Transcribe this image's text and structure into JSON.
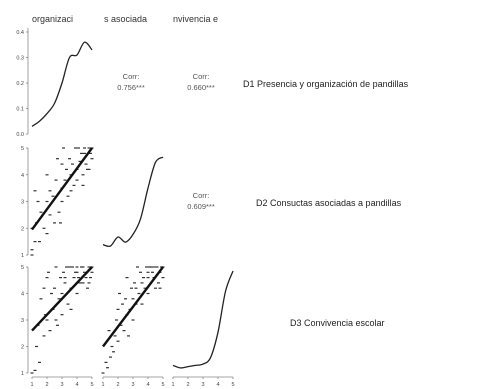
{
  "header_labels": [
    "organizaci",
    "s asociada",
    "nvivencia e"
  ],
  "row_labels": [
    "D1 Presencia y organización de pandillas",
    "D2 Consuctas asociadas a pandillas",
    "D3 Convivencia escolar"
  ],
  "correlations": [
    {
      "pair": "D1-D2",
      "label": "Corr:",
      "value": "0.756***"
    },
    {
      "pair": "D1-D3",
      "label": "Corr:",
      "value": "0.660***"
    },
    {
      "pair": "D2-D3",
      "label": "Corr:",
      "value": "0.609***"
    }
  ],
  "chart_data": {
    "type": "scatter",
    "variables": [
      "D1",
      "D2",
      "D3"
    ],
    "density_ticks": [
      "0.4",
      "0.3",
      "0.2",
      "0.1",
      "0.0"
    ],
    "scale_ticks": [
      "5",
      "4",
      "3",
      "2",
      "1"
    ],
    "bottom_ticks": [
      "1",
      "2",
      "3",
      "4",
      "5"
    ],
    "density_D1": {
      "x": [
        1.0,
        1.5,
        2.0,
        2.5,
        3.0,
        3.5,
        4.0,
        4.5,
        5.0
      ],
      "y": [
        0.03,
        0.05,
        0.08,
        0.12,
        0.2,
        0.3,
        0.31,
        0.36,
        0.33
      ]
    },
    "density_D2": {
      "x": [
        1.0,
        1.5,
        2.0,
        2.5,
        3.0,
        3.5,
        4.0,
        4.5,
        5.0
      ],
      "y": [
        0.04,
        0.035,
        0.07,
        0.05,
        0.08,
        0.14,
        0.26,
        0.36,
        0.38
      ]
    },
    "density_D3": {
      "x": [
        1.0,
        1.5,
        2.0,
        2.5,
        3.0,
        3.5,
        4.0,
        4.5,
        5.0
      ],
      "y": [
        0.03,
        0.02,
        0.025,
        0.03,
        0.035,
        0.06,
        0.16,
        0.32,
        0.4
      ]
    },
    "scatter_D2_vs_D1": {
      "fit": {
        "x": [
          1,
          5
        ],
        "y": [
          1.95,
          5.0
        ]
      },
      "points": [
        [
          1,
          1
        ],
        [
          1,
          1.2
        ],
        [
          1.2,
          1.5
        ],
        [
          1.5,
          1.5
        ],
        [
          1,
          2
        ],
        [
          1.3,
          2.2
        ],
        [
          1.8,
          2
        ],
        [
          2,
          1.8
        ],
        [
          2.2,
          2.5
        ],
        [
          2.5,
          2.2
        ],
        [
          2,
          3
        ],
        [
          2.4,
          3.2
        ],
        [
          2.8,
          2.6
        ],
        [
          3,
          3
        ],
        [
          3,
          3.5
        ],
        [
          3.2,
          3.8
        ],
        [
          3.4,
          3.2
        ],
        [
          3.6,
          4
        ],
        [
          3.8,
          3.6
        ],
        [
          4,
          4.2
        ],
        [
          4,
          3.8
        ],
        [
          4.2,
          4.5
        ],
        [
          4.4,
          4
        ],
        [
          4.5,
          4.8
        ],
        [
          4.6,
          4.4
        ],
        [
          4.8,
          5
        ],
        [
          5,
          5
        ],
        [
          5,
          4.6
        ],
        [
          4.7,
          4.2
        ],
        [
          4.3,
          4.8
        ],
        [
          3.5,
          4.6
        ],
        [
          3,
          4.4
        ],
        [
          2.6,
          3.8
        ],
        [
          2.2,
          3.4
        ],
        [
          1.6,
          2.6
        ],
        [
          1.4,
          3
        ],
        [
          3.9,
          5
        ],
        [
          3.3,
          4.2
        ],
        [
          4.9,
          4.8
        ],
        [
          4.1,
          5
        ],
        [
          2.9,
          2.2
        ],
        [
          3.7,
          4.4
        ],
        [
          4.5,
          5
        ],
        [
          2,
          4
        ],
        [
          1.2,
          3.4
        ],
        [
          3.6,
          3.4
        ],
        [
          4.8,
          4.2
        ],
        [
          2.7,
          4.6
        ],
        [
          3.1,
          5
        ],
        [
          4.4,
          3.6
        ]
      ]
    },
    "scatter_D3_vs_D1": {
      "fit": {
        "x": [
          1,
          5
        ],
        "y": [
          2.6,
          5.0
        ]
      },
      "points": [
        [
          1,
          1
        ],
        [
          1.2,
          1.1
        ],
        [
          1.5,
          1.4
        ],
        [
          1.3,
          2
        ],
        [
          1.8,
          2.4
        ],
        [
          2,
          3
        ],
        [
          2.2,
          2.6
        ],
        [
          2.4,
          3.4
        ],
        [
          2.6,
          3
        ],
        [
          2.8,
          3.8
        ],
        [
          3,
          3.2
        ],
        [
          3,
          4
        ],
        [
          3.2,
          4.4
        ],
        [
          3.4,
          3.6
        ],
        [
          3.6,
          4.2
        ],
        [
          3.8,
          4.6
        ],
        [
          4,
          4
        ],
        [
          4,
          4.8
        ],
        [
          4.2,
          4.4
        ],
        [
          4.4,
          5
        ],
        [
          4.6,
          4.6
        ],
        [
          4.8,
          5
        ],
        [
          5,
          5
        ],
        [
          5,
          4.8
        ],
        [
          4.7,
          4.2
        ],
        [
          4.3,
          5
        ],
        [
          3.5,
          5
        ],
        [
          3.9,
          4.8
        ],
        [
          2.5,
          4.2
        ],
        [
          2,
          4.6
        ],
        [
          1.6,
          3.8
        ],
        [
          3.1,
          4.8
        ],
        [
          4.5,
          4.8
        ],
        [
          2.9,
          4.6
        ],
        [
          3.3,
          5
        ],
        [
          1.9,
          3.2
        ],
        [
          2.3,
          4
        ],
        [
          4.1,
          4.6
        ],
        [
          4.9,
          4.6
        ],
        [
          3.7,
          5
        ],
        [
          2.7,
          2.8
        ],
        [
          3.6,
          3.4
        ],
        [
          1.4,
          2.8
        ],
        [
          4.4,
          4.4
        ],
        [
          2.1,
          4.8
        ],
        [
          2.6,
          5
        ],
        [
          3.2,
          4.6
        ],
        [
          4,
          5
        ],
        [
          1.8,
          4.2
        ],
        [
          4.8,
          4.4
        ]
      ]
    },
    "scatter_D3_vs_D2": {
      "fit": {
        "x": [
          1,
          5
        ],
        "y": [
          2.0,
          5.0
        ]
      },
      "points": [
        [
          1,
          1
        ],
        [
          1.2,
          1.4
        ],
        [
          1.5,
          1.6
        ],
        [
          1.6,
          2
        ],
        [
          1.8,
          2.4
        ],
        [
          2,
          2.2
        ],
        [
          2.2,
          2.8
        ],
        [
          2.4,
          2.6
        ],
        [
          2.6,
          3.2
        ],
        [
          2.8,
          3.4
        ],
        [
          3,
          3
        ],
        [
          3,
          3.8
        ],
        [
          3.2,
          3.6
        ],
        [
          3.4,
          4
        ],
        [
          3.6,
          4.4
        ],
        [
          3.8,
          4.2
        ],
        [
          4,
          4.6
        ],
        [
          4,
          4
        ],
        [
          4.2,
          5
        ],
        [
          4.4,
          4.6
        ],
        [
          4.6,
          5
        ],
        [
          4.8,
          4.8
        ],
        [
          5,
          5
        ],
        [
          5,
          4.6
        ],
        [
          4.7,
          4.4
        ],
        [
          4.3,
          4.8
        ],
        [
          3.5,
          4.8
        ],
        [
          3.9,
          5
        ],
        [
          2.5,
          3.8
        ],
        [
          2,
          3.4
        ],
        [
          1.4,
          2.6
        ],
        [
          3.1,
          4.4
        ],
        [
          4.5,
          4.2
        ],
        [
          2.9,
          4.2
        ],
        [
          3.3,
          5
        ],
        [
          1.9,
          3
        ],
        [
          2.3,
          3.6
        ],
        [
          4.1,
          5
        ],
        [
          4.9,
          5
        ],
        [
          3.7,
          4.6
        ],
        [
          2.7,
          2.4
        ],
        [
          3.6,
          3.6
        ],
        [
          1.7,
          1.8
        ],
        [
          4.4,
          5
        ],
        [
          2.1,
          4
        ],
        [
          2.6,
          4.6
        ],
        [
          3.2,
          4.2
        ],
        [
          4,
          4.8
        ],
        [
          1.3,
          1.2
        ],
        [
          4.8,
          4.2
        ]
      ]
    }
  }
}
